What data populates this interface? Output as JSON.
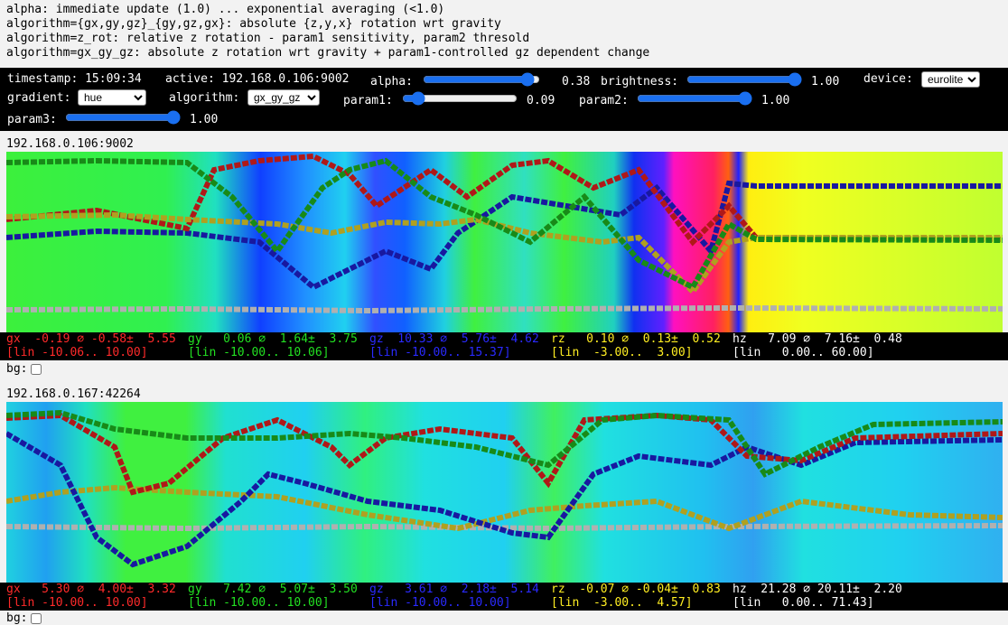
{
  "help": [
    "alpha: immediate update (1.0) ... exponential averaging (<1.0)",
    "algorithm={gx,gy,gz}_{gy,gz,gx}: absolute {z,y,x} rotation wrt gravity",
    "algorithm=z_rot: relative z rotation - param1 sensitivity, param2 thresold",
    "algorithm=gx_gy_gz: absolute z rotation wrt gravity + param1-controlled gz dependent change"
  ],
  "controls": {
    "timestamp": "timestamp: 15:09:34",
    "active": "active: 192.168.0.106:9002",
    "alpha_label": "alpha:",
    "alpha_value": "0.38",
    "brightness_label": "brightness:",
    "brightness_value": "1.00",
    "device_label": "device:",
    "device_value": "eurolite",
    "gradient_label": "gradient:",
    "gradient_value": "hue",
    "algorithm_label": "algorithm:",
    "algorithm_value": "gx_gy_gz",
    "param1_label": "param1:",
    "param1_value": "0.09",
    "param2_label": "param2:",
    "param2_value": "1.00",
    "param3_label": "param3:",
    "param3_value": "1.00"
  },
  "devices": [
    {
      "address": "192.168.0.106:9002",
      "stats": [
        [
          "gx  -0.19 ⌀ -0.58±  5.55",
          "[lin -10.06.. 10.00]"
        ],
        [
          "gy   0.06 ⌀  1.64±  3.75",
          "[lin -10.00.. 10.06]"
        ],
        [
          "gz  10.33 ⌀  5.76±  4.62",
          "[lin -10.00.. 15.37]"
        ],
        [
          "rz   0.10 ⌀  0.13±  0.52",
          "[lin  -3.00..  3.00]"
        ],
        [
          "hz   7.09 ⌀  7.16±  0.48",
          "[lin   0.00.. 60.00]"
        ]
      ],
      "bg": "bg:"
    },
    {
      "address": "192.168.0.167:42264",
      "stats": [
        [
          "gx   5.30 ⌀  4.00±  3.32",
          "[lin -10.00.. 10.00]"
        ],
        [
          "gy   7.42 ⌀  5.07±  3.50",
          "[lin -10.00.. 10.00]"
        ],
        [
          "gz   3.61 ⌀  2.18±  5.14",
          "[lin -10.00.. 10.00]"
        ],
        [
          "rz  -0.07 ⌀ -0.04±  0.83",
          "[lin  -3.00..  4.57]"
        ],
        [
          "hz  21.28 ⌀ 20.11±  2.20",
          "[lin   0.00.. 71.43]"
        ]
      ],
      "bg": "bg:"
    }
  ]
}
